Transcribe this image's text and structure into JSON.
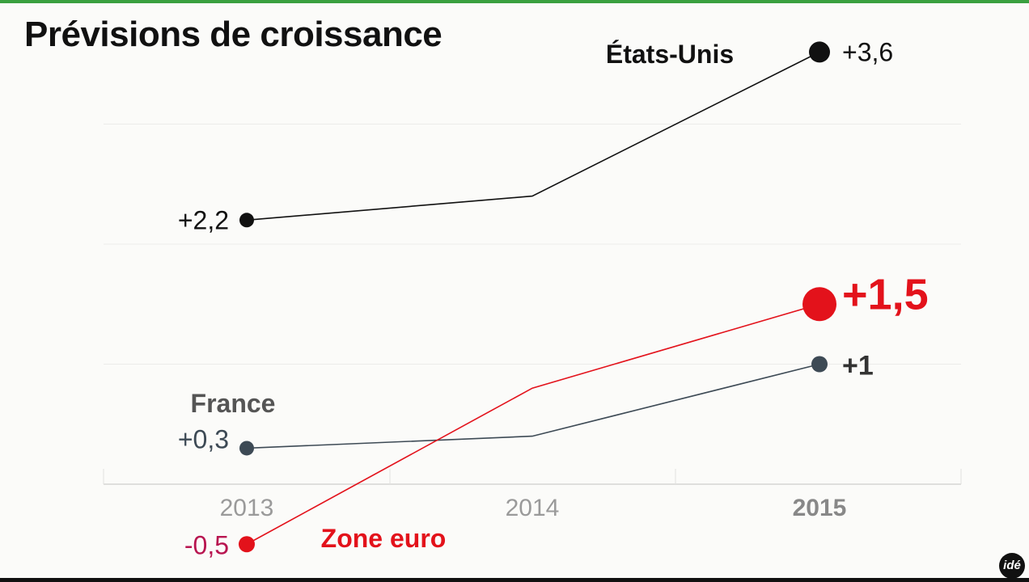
{
  "chart_data": {
    "type": "line",
    "title": "Prévisions de croissance",
    "categories": [
      "2013",
      "2014",
      "2015"
    ],
    "highlighted_category": "2015",
    "ylim": [
      -0.5,
      3.6
    ],
    "grid": true,
    "series": [
      {
        "name": "États-Unis",
        "values": [
          2.2,
          2.4,
          3.6
        ],
        "labels": [
          "+2,2",
          null,
          "+3,6"
        ],
        "color": "#111111"
      },
      {
        "name": "France",
        "values": [
          0.3,
          0.4,
          1.0
        ],
        "labels": [
          "+0,3",
          null,
          "+1"
        ],
        "color": "#3d4a55"
      },
      {
        "name": "Zone euro",
        "values": [
          -0.5,
          0.8,
          1.5
        ],
        "labels": [
          "-0,5",
          null,
          "+1,5"
        ],
        "color": "#e3121b"
      }
    ]
  },
  "logo": "idé"
}
